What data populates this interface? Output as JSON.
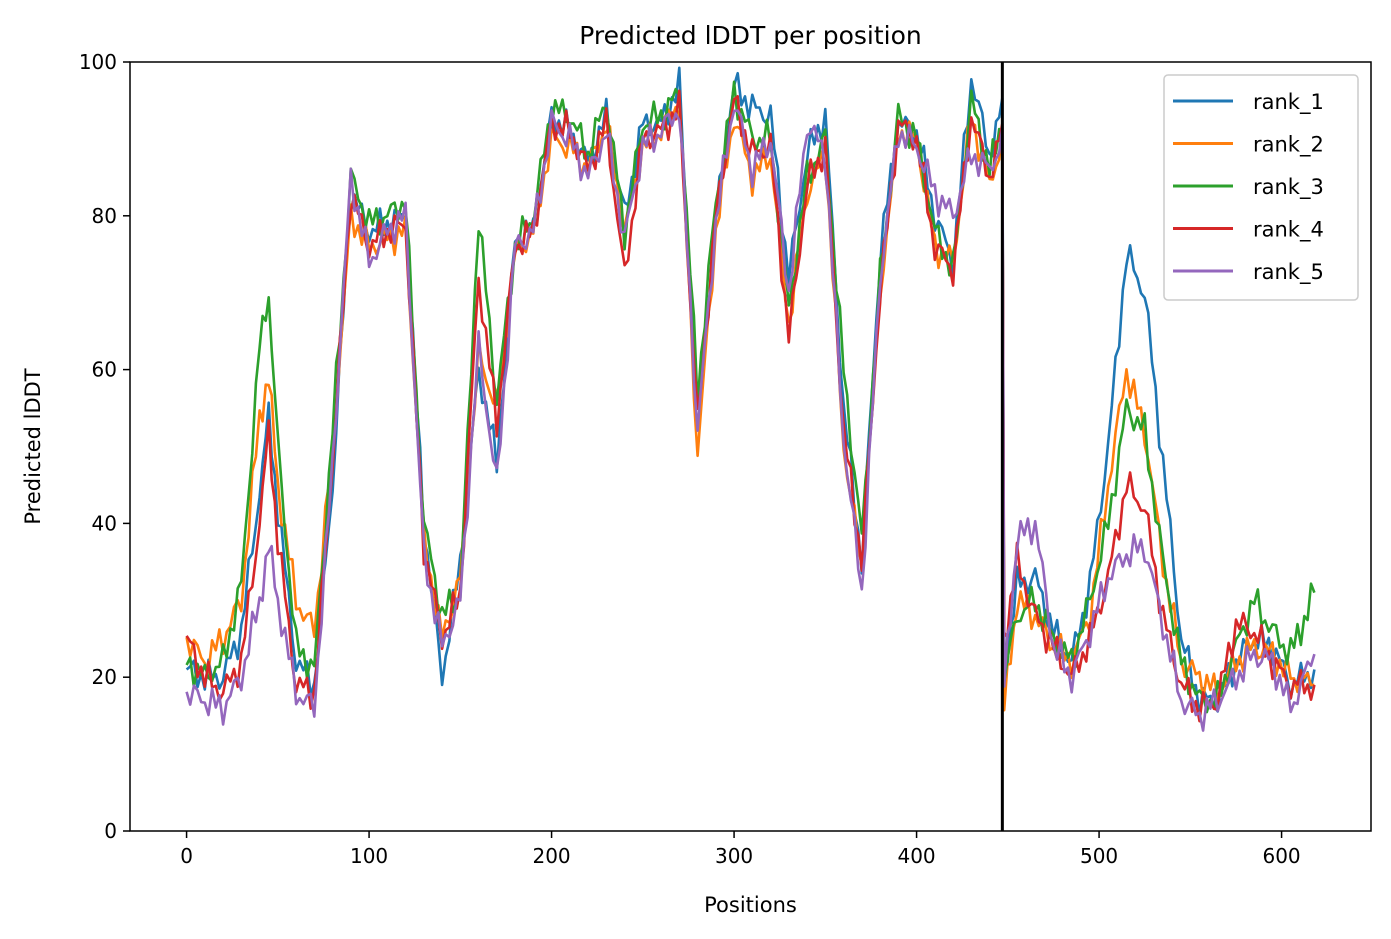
{
  "chart_data": {
    "type": "line",
    "title": "Predicted lDDT per position",
    "xlabel": "Positions",
    "ylabel": "Predicted lDDT",
    "xlim": [
      -31,
      649
    ],
    "ylim": [
      0,
      100
    ],
    "x_ticks": [
      0,
      100,
      200,
      300,
      400,
      500,
      600
    ],
    "y_ticks": [
      0,
      20,
      40,
      60,
      80,
      100
    ],
    "grid": false,
    "legend_position": "top-right",
    "separator_x": 447,
    "anchor_x": [
      0,
      10,
      20,
      30,
      40,
      45,
      50,
      60,
      70,
      80,
      90,
      100,
      110,
      120,
      130,
      140,
      150,
      160,
      170,
      180,
      190,
      200,
      210,
      220,
      230,
      240,
      250,
      260,
      270,
      280,
      290,
      300,
      310,
      320,
      330,
      340,
      350,
      360,
      370,
      380,
      390,
      400,
      410,
      420,
      430,
      440,
      447,
      448,
      455,
      465,
      475,
      485,
      495,
      505,
      515,
      525,
      535,
      545,
      555,
      565,
      575,
      585,
      595,
      605,
      618
    ],
    "series": [
      {
        "name": "rank_1",
        "color": "#1f77b4",
        "values": [
          21,
          20,
          20,
          26,
          44,
          54,
          42,
          22,
          19,
          45,
          83,
          78,
          79,
          80,
          40,
          20,
          35,
          60,
          48,
          77,
          78,
          93,
          91,
          87,
          93,
          80,
          92,
          92,
          97,
          54,
          80,
          97,
          94,
          93,
          72,
          88,
          93,
          55,
          35,
          75,
          92,
          91,
          80,
          74,
          98,
          88,
          94,
          21,
          32,
          33,
          26,
          22,
          32,
          50,
          75,
          70,
          48,
          25,
          17,
          17,
          22,
          25,
          24,
          19,
          21
        ]
      },
      {
        "name": "rank_2",
        "color": "#ff7f0e",
        "values": [
          25,
          22,
          25,
          30,
          54,
          59,
          45,
          30,
          26,
          50,
          80,
          76,
          77,
          78,
          38,
          25,
          33,
          62,
          55,
          75,
          78,
          90,
          89,
          86,
          92,
          78,
          89,
          91,
          95,
          49,
          78,
          93,
          85,
          88,
          66,
          83,
          88,
          50,
          34,
          70,
          91,
          90,
          76,
          74,
          93,
          84,
          90,
          16,
          30,
          28,
          24,
          22,
          28,
          45,
          60,
          52,
          35,
          22,
          20,
          18,
          22,
          24,
          23,
          20,
          19
        ]
      },
      {
        "name": "rank_3",
        "color": "#2ca02c",
        "values": [
          22,
          20,
          22,
          32,
          63,
          70,
          50,
          24,
          21,
          52,
          85,
          79,
          80,
          82,
          40,
          28,
          31,
          80,
          56,
          76,
          80,
          94,
          93,
          88,
          95,
          78,
          92,
          93,
          96,
          57,
          82,
          96,
          90,
          90,
          68,
          85,
          90,
          60,
          38,
          72,
          93,
          90,
          78,
          73,
          95,
          86,
          92,
          20,
          28,
          30,
          25,
          22,
          30,
          40,
          55,
          52,
          35,
          22,
          17,
          17,
          24,
          30,
          26,
          23,
          31
        ]
      },
      {
        "name": "rank_4",
        "color": "#d62728",
        "values": [
          25,
          20,
          18,
          22,
          40,
          52,
          38,
          19,
          18,
          48,
          83,
          76,
          78,
          79,
          37,
          25,
          31,
          72,
          53,
          76,
          78,
          92,
          91,
          86,
          92,
          72,
          90,
          91,
          94,
          53,
          80,
          95,
          88,
          89,
          64,
          84,
          89,
          52,
          35,
          70,
          92,
          90,
          76,
          73,
          93,
          85,
          91,
          25,
          35,
          28,
          24,
          20,
          25,
          33,
          45,
          42,
          28,
          19,
          16,
          17,
          27,
          26,
          22,
          19,
          19
        ]
      },
      {
        "name": "rank_5",
        "color": "#9467bd",
        "values": [
          18,
          17,
          16,
          20,
          30,
          37,
          30,
          18,
          16,
          48,
          85,
          74,
          78,
          80,
          36,
          24,
          30,
          63,
          45,
          76,
          78,
          92,
          90,
          85,
          91,
          77,
          89,
          91,
          94,
          52,
          79,
          95,
          86,
          90,
          70,
          92,
          88,
          51,
          31,
          72,
          91,
          89,
          83,
          80,
          88,
          86,
          90,
          19,
          38,
          40,
          24,
          20,
          26,
          33,
          36,
          37,
          27,
          17,
          15,
          17,
          20,
          23,
          22,
          16,
          23
        ]
      }
    ]
  }
}
